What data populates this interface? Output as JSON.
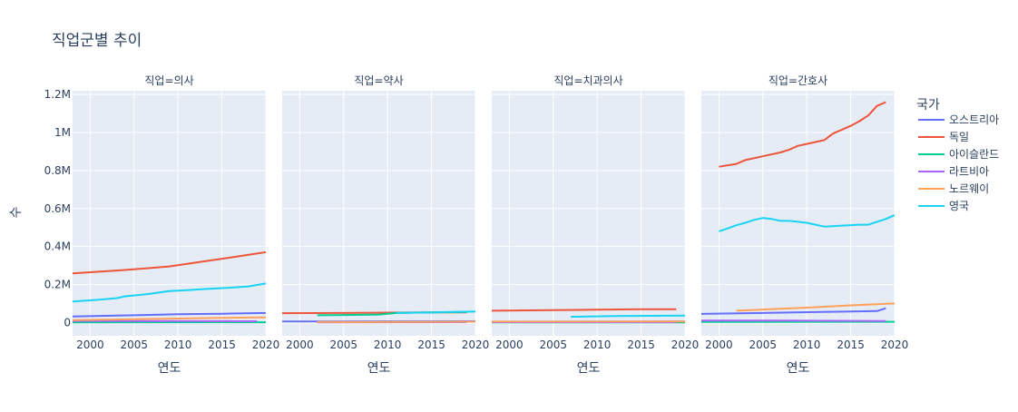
{
  "title": "직업군별 추이",
  "chart_data": {
    "type": "line",
    "title": "직업군별 추이",
    "ylabel": "수",
    "xlabel": "연도",
    "xlim": [
      1998,
      2020
    ],
    "ylim": [
      -70000,
      1220000
    ],
    "x_ticks": [
      "2000",
      "2005",
      "2010",
      "2015",
      "2020"
    ],
    "y_ticks": [
      {
        "value": 0,
        "label": "0"
      },
      {
        "value": 200000,
        "label": "0.2M"
      },
      {
        "value": 400000,
        "label": "0.4M"
      },
      {
        "value": 600000,
        "label": "0.6M"
      },
      {
        "value": 800000,
        "label": "0.8M"
      },
      {
        "value": 1000000,
        "label": "1M"
      },
      {
        "value": 1200000,
        "label": "1.2M"
      }
    ],
    "grid": true,
    "legend_title": "국가",
    "legend_position": "right",
    "series_meta": [
      {
        "name": "오스트리아",
        "color": "#636efa"
      },
      {
        "name": "독일",
        "color": "#ef553b"
      },
      {
        "name": "아이슬란드",
        "color": "#00cc96"
      },
      {
        "name": "라트비아",
        "color": "#ab63fa"
      },
      {
        "name": "노르웨이",
        "color": "#ffa15a"
      },
      {
        "name": "영국",
        "color": "#19d3f3"
      }
    ],
    "facets": [
      {
        "label": "직업=의사",
        "series": [
          {
            "name": "오스트리아",
            "points": [
              [
                1998,
                32000
              ],
              [
                2005,
                38000
              ],
              [
                2010,
                43000
              ],
              [
                2015,
                46000
              ],
              [
                2020,
                50000
              ]
            ]
          },
          {
            "name": "독일",
            "points": [
              [
                1998,
                258000
              ],
              [
                2002,
                270000
              ],
              [
                2005,
                280000
              ],
              [
                2009,
                295000
              ],
              [
                2012,
                315000
              ],
              [
                2016,
                342000
              ],
              [
                2020,
                370000
              ]
            ]
          },
          {
            "name": "아이슬란드",
            "points": [
              [
                1998,
                900
              ],
              [
                2020,
                1300
              ]
            ]
          },
          {
            "name": "라트비아",
            "points": [
              [
                1998,
                8000
              ],
              [
                2019,
                7000
              ]
            ]
          },
          {
            "name": "노르웨이",
            "points": [
              [
                1998,
                12000
              ],
              [
                2005,
                17000
              ],
              [
                2010,
                21000
              ],
              [
                2015,
                24000
              ],
              [
                2020,
                27000
              ]
            ]
          },
          {
            "name": "영국",
            "points": [
              [
                1998,
                110000
              ],
              [
                2001,
                120000
              ],
              [
                2003,
                128000
              ],
              [
                2004,
                138000
              ],
              [
                2006,
                147000
              ],
              [
                2007,
                152000
              ],
              [
                2009,
                165000
              ],
              [
                2011,
                170000
              ],
              [
                2013,
                176000
              ],
              [
                2016,
                183000
              ],
              [
                2018,
                190000
              ],
              [
                2020,
                205000
              ]
            ]
          }
        ]
      },
      {
        "label": "직업=약사",
        "series": [
          {
            "name": "오스트리아",
            "points": [
              [
                1998,
                5000
              ],
              [
                2020,
                6500
              ]
            ]
          },
          {
            "name": "독일",
            "points": [
              [
                1998,
                49000
              ],
              [
                2005,
                50000
              ],
              [
                2010,
                52000
              ],
              [
                2015,
                53000
              ],
              [
                2019,
                53000
              ]
            ]
          },
          {
            "name": "아이슬란드",
            "points": [
              [
                2002,
                38000
              ],
              [
                2006,
                40000
              ],
              [
                2009,
                42000
              ],
              [
                2011,
                50000
              ],
              [
                2015,
                53000
              ],
              [
                2019,
                55000
              ]
            ]
          },
          {
            "name": "라트비아",
            "points": [
              [
                2002,
                1000
              ],
              [
                2019,
                1500
              ]
            ]
          },
          {
            "name": "노르웨이",
            "points": [
              [
                2002,
                3000
              ],
              [
                2007,
                2000
              ],
              [
                2020,
                4000
              ]
            ]
          },
          {
            "name": "영국",
            "points": [
              [
                2011,
                50000
              ],
              [
                2015,
                53000
              ],
              [
                2020,
                58000
              ]
            ]
          }
        ]
      },
      {
        "label": "직업=치과의사",
        "series": [
          {
            "name": "오스트리아",
            "points": [
              [
                1998,
                4000
              ],
              [
                2020,
                5000
              ]
            ]
          },
          {
            "name": "독일",
            "points": [
              [
                1998,
                62000
              ],
              [
                2005,
                65000
              ],
              [
                2010,
                67000
              ],
              [
                2015,
                70000
              ],
              [
                2019,
                70000
              ]
            ]
          },
          {
            "name": "아이슬란드",
            "points": [
              [
                1998,
                200
              ],
              [
                2020,
                300
              ]
            ]
          },
          {
            "name": "라트비아",
            "points": [
              [
                1998,
                1500
              ],
              [
                2019,
                1700
              ]
            ]
          },
          {
            "name": "노르웨이",
            "points": [
              [
                1998,
                4500
              ],
              [
                2020,
                5000
              ]
            ]
          },
          {
            "name": "영국",
            "points": [
              [
                2007,
                30000
              ],
              [
                2012,
                34000
              ],
              [
                2020,
                36000
              ]
            ]
          }
        ]
      },
      {
        "label": "직업=간호사",
        "series": [
          {
            "name": "오스트리아",
            "points": [
              [
                1998,
                45000
              ],
              [
                2005,
                50000
              ],
              [
                2010,
                54000
              ],
              [
                2015,
                58000
              ],
              [
                2018,
                60000
              ],
              [
                2019,
                75000
              ]
            ]
          },
          {
            "name": "독일",
            "points": [
              [
                2000,
                820000
              ],
              [
                2002,
                835000
              ],
              [
                2003,
                855000
              ],
              [
                2005,
                875000
              ],
              [
                2007,
                895000
              ],
              [
                2008,
                910000
              ],
              [
                2009,
                930000
              ],
              [
                2010,
                940000
              ],
              [
                2012,
                960000
              ],
              [
                2013,
                995000
              ],
              [
                2014,
                1015000
              ],
              [
                2015,
                1035000
              ],
              [
                2016,
                1060000
              ],
              [
                2017,
                1090000
              ],
              [
                2018,
                1140000
              ],
              [
                2019,
                1160000
              ]
            ]
          },
          {
            "name": "아이슬란드",
            "points": [
              [
                1998,
                3000
              ],
              [
                2020,
                3500
              ]
            ]
          },
          {
            "name": "라트비아",
            "points": [
              [
                1998,
                10000
              ],
              [
                2008,
                10000
              ],
              [
                2019,
                8000
              ]
            ]
          },
          {
            "name": "노르웨이",
            "points": [
              [
                2002,
                62000
              ],
              [
                2010,
                78000
              ],
              [
                2015,
                90000
              ],
              [
                2020,
                100000
              ]
            ]
          },
          {
            "name": "영국",
            "points": [
              [
                2000,
                480000
              ],
              [
                2001,
                495000
              ],
              [
                2002,
                512000
              ],
              [
                2003,
                525000
              ],
              [
                2004,
                540000
              ],
              [
                2005,
                550000
              ],
              [
                2006,
                545000
              ],
              [
                2007,
                535000
              ],
              [
                2008,
                535000
              ],
              [
                2009,
                530000
              ],
              [
                2010,
                525000
              ],
              [
                2011,
                515000
              ],
              [
                2012,
                505000
              ],
              [
                2014,
                510000
              ],
              [
                2016,
                515000
              ],
              [
                2017,
                515000
              ],
              [
                2018,
                530000
              ],
              [
                2019,
                545000
              ],
              [
                2020,
                565000
              ]
            ]
          }
        ]
      }
    ]
  }
}
